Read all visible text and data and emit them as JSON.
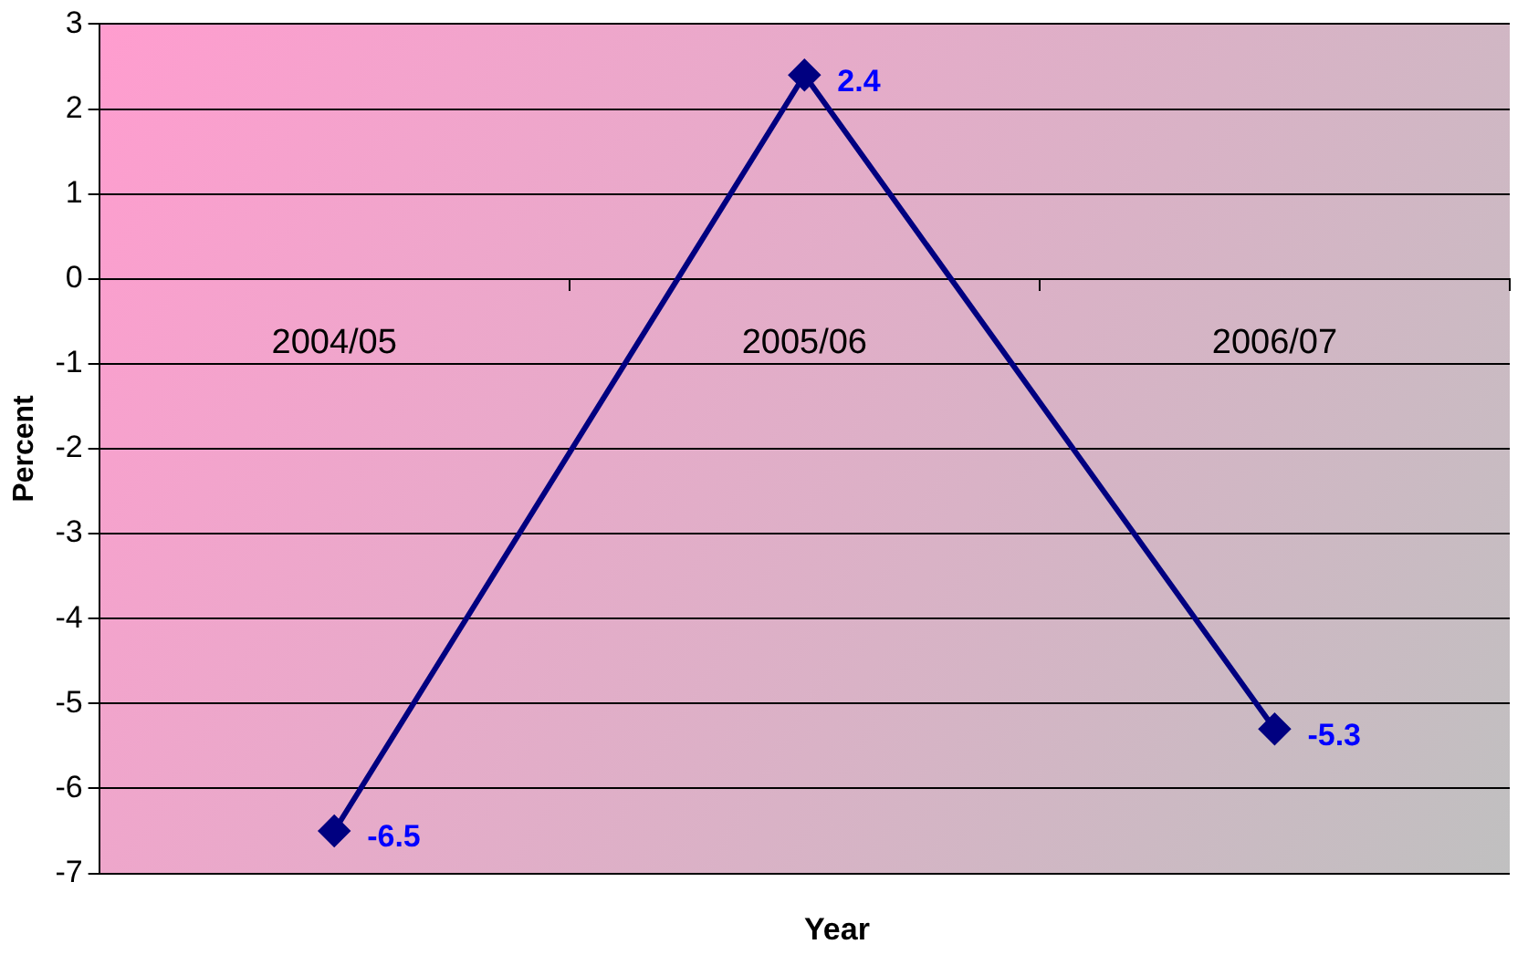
{
  "chart_data": {
    "type": "line",
    "xlabel": "Year",
    "ylabel": "Percent",
    "categories": [
      "2004/05",
      "2005/06",
      "2006/07"
    ],
    "series": [
      {
        "color": "#000080",
        "values": [
          -6.5,
          2.4,
          -5.3
        ]
      }
    ],
    "ylim": [
      -7,
      3
    ],
    "yticks": [
      -7,
      -6,
      -5,
      -4,
      -3,
      -2,
      -1,
      0,
      1,
      2,
      3
    ],
    "grid": "y",
    "marker": "diamond",
    "line_style": "solid",
    "data_labels": true,
    "legend": false
  }
}
